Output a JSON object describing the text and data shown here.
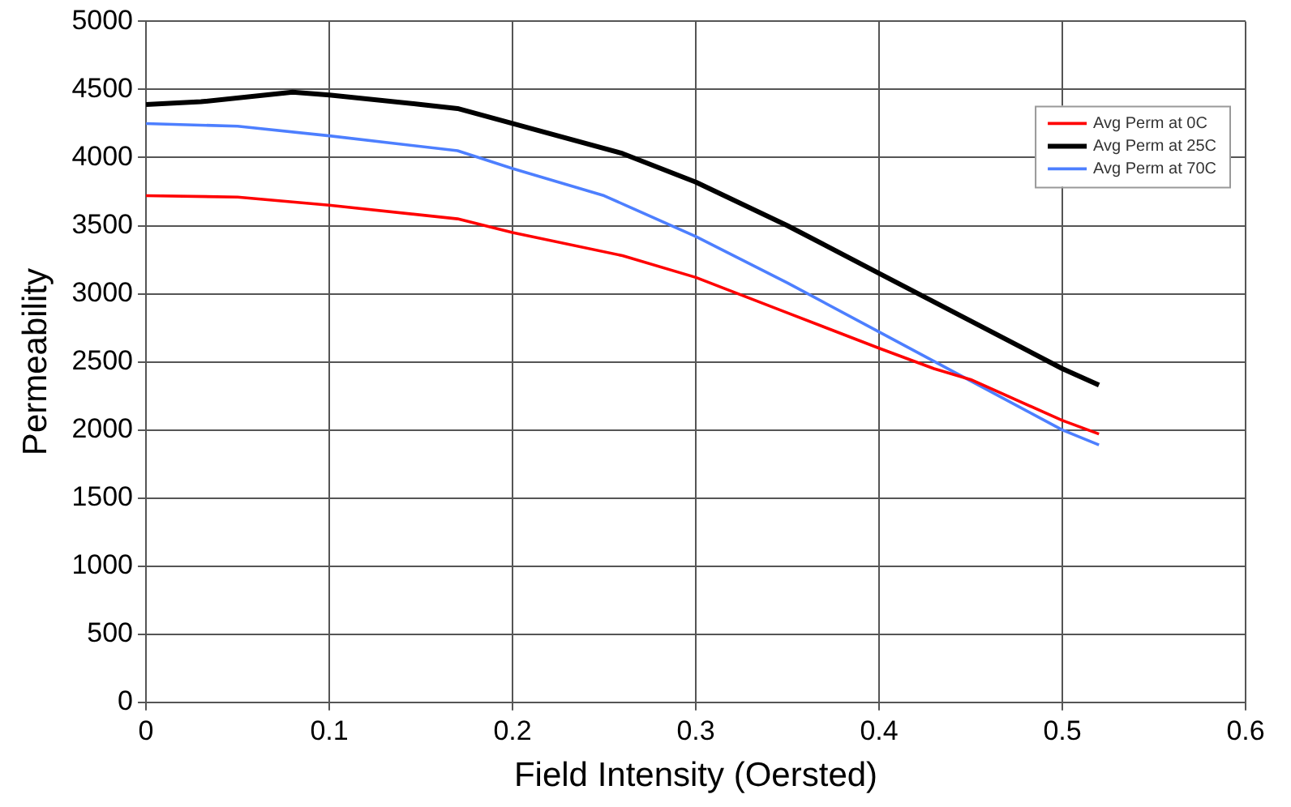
{
  "chart_data": {
    "type": "line",
    "xlabel": "Field Intensity (Oersted)",
    "ylabel": "Permeability",
    "xlim": [
      0,
      0.6
    ],
    "xticks": [
      0,
      0.1,
      0.2,
      0.3,
      0.4,
      0.5,
      0.6
    ],
    "ylim": [
      0,
      5000
    ],
    "yticks": [
      0,
      500,
      1000,
      1500,
      2000,
      2500,
      3000,
      3500,
      4000,
      4500,
      5000
    ],
    "grid": true,
    "legend": "top right",
    "marker": "none",
    "line_style": "solid",
    "series": [
      {
        "name": "Avg Perm at 0C",
        "color": "#ff0000",
        "x": [
          0,
          0.05,
          0.1,
          0.17,
          0.2,
          0.26,
          0.3,
          0.35,
          0.4,
          0.43,
          0.45,
          0.5,
          0.52
        ],
        "values": [
          3720,
          3710,
          3650,
          3550,
          3450,
          3280,
          3120,
          2860,
          2600,
          2450,
          2370,
          2070,
          1970
        ]
      },
      {
        "name": "Avg Perm at 25C",
        "color": "#000000",
        "x": [
          0,
          0.03,
          0.08,
          0.1,
          0.15,
          0.17,
          0.2,
          0.26,
          0.3,
          0.35,
          0.4,
          0.45,
          0.5,
          0.52
        ],
        "values": [
          4390,
          4410,
          4480,
          4460,
          4390,
          4360,
          4250,
          4030,
          3820,
          3500,
          3150,
          2800,
          2450,
          2330
        ]
      },
      {
        "name": "Avg Perm at 70C",
        "color": "#4d7fff",
        "x": [
          0,
          0.05,
          0.1,
          0.17,
          0.2,
          0.25,
          0.3,
          0.35,
          0.4,
          0.45,
          0.5,
          0.52
        ],
        "values": [
          4250,
          4230,
          4160,
          4050,
          3920,
          3720,
          3420,
          3080,
          2720,
          2360,
          2000,
          1890
        ]
      }
    ]
  }
}
